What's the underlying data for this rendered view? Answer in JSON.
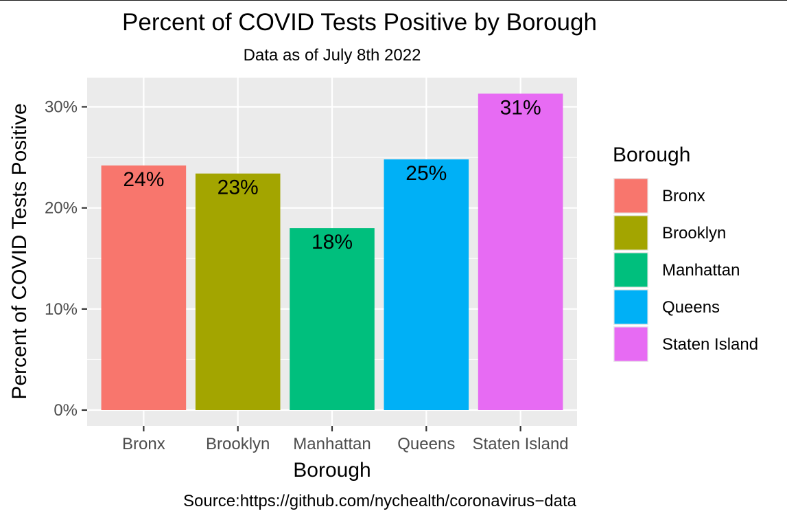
{
  "chart_data": {
    "type": "bar",
    "title": "Percent of COVID Tests Positive by Borough",
    "subtitle": "Data as of July 8th 2022",
    "xlabel": "Borough",
    "ylabel": "Percent of COVID Tests Positive",
    "caption": "Source:https://github.com/nychealth/coronavirus−data",
    "categories": [
      "Bronx",
      "Brooklyn",
      "Manhattan",
      "Queens",
      "Staten Island"
    ],
    "values": [
      24.2,
      23.4,
      18.0,
      24.8,
      31.3
    ],
    "data_labels": [
      "24%",
      "23%",
      "18%",
      "25%",
      "31%"
    ],
    "colors": [
      "#F8766D",
      "#A3A500",
      "#00BF7D",
      "#00B0F6",
      "#E76BF3"
    ],
    "ylim": [
      0,
      32.9
    ],
    "yticks": [
      0,
      10,
      20,
      30
    ],
    "ytick_labels": [
      "0%",
      "10%",
      "20%",
      "30%"
    ],
    "grid": true,
    "panel_background": "#EBEBEB",
    "legend": {
      "title": "Borough",
      "position": "right",
      "entries": [
        "Bronx",
        "Brooklyn",
        "Manhattan",
        "Queens",
        "Staten Island"
      ]
    }
  }
}
